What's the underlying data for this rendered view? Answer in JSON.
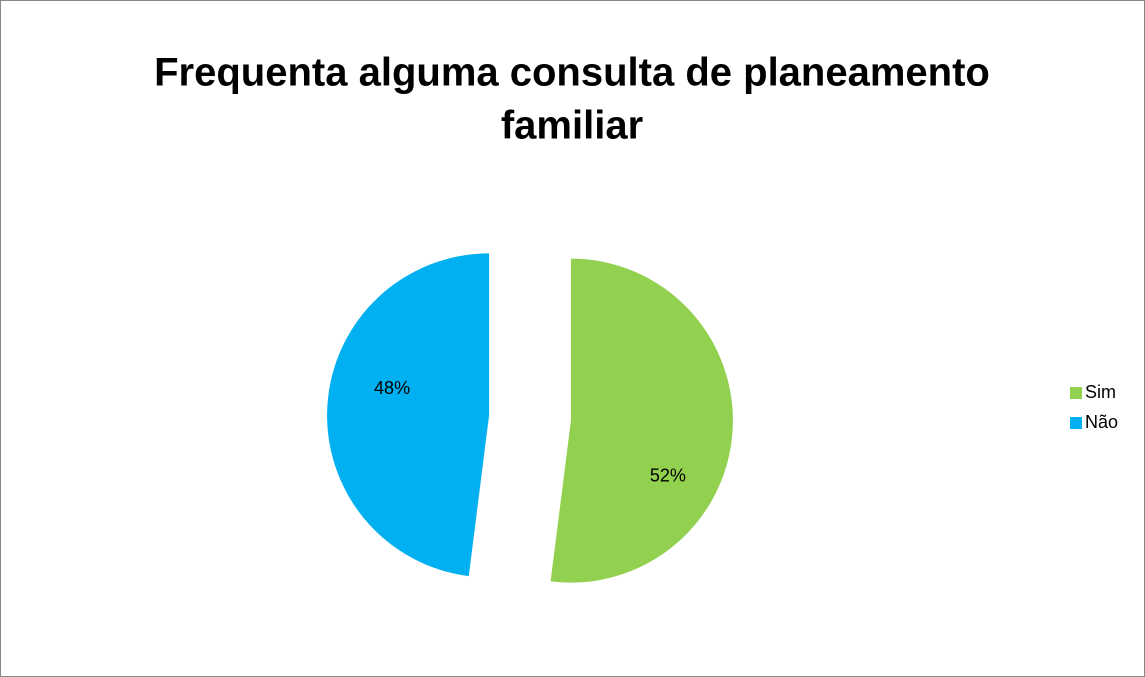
{
  "chart_data": {
    "type": "pie",
    "title": [
      "Frequenta alguma consulta de planeamento",
      "familiar"
    ],
    "categories": [
      "Sim",
      "Não"
    ],
    "values": [
      52,
      48
    ],
    "value_labels": [
      "52%",
      "48%"
    ],
    "colors": [
      "#92d050",
      "#00b0f0"
    ],
    "legend": "right",
    "exploded": true
  }
}
